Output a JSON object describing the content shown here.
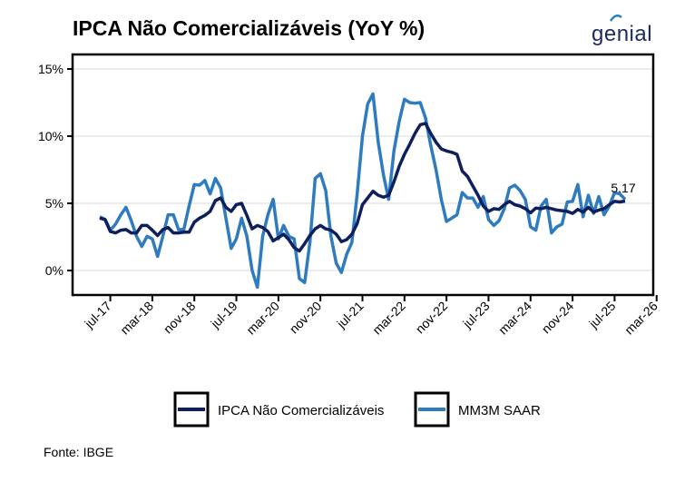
{
  "title": "IPCA Não Comercializáveis (YoY %)",
  "logo": "genial",
  "source": "Fonte: IBGE",
  "colors": {
    "ipca": "#0d1f5c",
    "mm3m": "#2f7bbf",
    "grid": "#e6e6e6"
  },
  "chart_data": {
    "type": "line",
    "title": "IPCA Não Comercializáveis (YoY %)",
    "xlabel": "",
    "ylabel": "",
    "ylim": [
      -1.8,
      16.1
    ],
    "yticks": [
      0,
      5,
      10,
      15
    ],
    "ytick_labels": [
      "0%",
      "5%",
      "10%",
      "15%"
    ],
    "xticks": [
      "2017-07",
      "2018-03",
      "2018-11",
      "2019-07",
      "2020-03",
      "2020-11",
      "2021-07",
      "2022-03",
      "2022-11",
      "2023-07",
      "2024-03",
      "2024-11",
      "2025-07",
      "2026-03"
    ],
    "xtick_labels": [
      "jul-17",
      "mar-18",
      "nov-18",
      "jul-19",
      "mar-20",
      "nov-20",
      "jul-21",
      "mar-22",
      "nov-22",
      "jul-23",
      "mar-24",
      "nov-24",
      "jul-25",
      "mar-26"
    ],
    "grid": "horizontal",
    "legend_position": "bottom",
    "x": [
      "2017-05",
      "2017-06",
      "2017-07",
      "2017-08",
      "2017-09",
      "2017-10",
      "2017-11",
      "2017-12",
      "2018-01",
      "2018-02",
      "2018-03",
      "2018-04",
      "2018-05",
      "2018-06",
      "2018-07",
      "2018-08",
      "2018-09",
      "2018-10",
      "2018-11",
      "2018-12",
      "2019-01",
      "2019-02",
      "2019-03",
      "2019-04",
      "2019-05",
      "2019-06",
      "2019-07",
      "2019-08",
      "2019-09",
      "2019-10",
      "2019-11",
      "2019-12",
      "2020-01",
      "2020-02",
      "2020-03",
      "2020-04",
      "2020-05",
      "2020-06",
      "2020-07",
      "2020-08",
      "2020-09",
      "2020-10",
      "2020-11",
      "2020-12",
      "2021-01",
      "2021-02",
      "2021-03",
      "2021-04",
      "2021-05",
      "2021-06",
      "2021-07",
      "2021-08",
      "2021-09",
      "2021-10",
      "2021-11",
      "2021-12",
      "2022-01",
      "2022-02",
      "2022-03",
      "2022-04",
      "2022-05",
      "2022-06",
      "2022-07",
      "2022-08",
      "2022-09",
      "2022-10",
      "2022-11",
      "2022-12",
      "2023-01",
      "2023-02",
      "2023-03",
      "2023-04",
      "2023-05",
      "2023-06",
      "2023-07",
      "2023-08",
      "2023-09",
      "2023-10",
      "2023-11",
      "2023-12",
      "2024-01",
      "2024-02",
      "2024-03",
      "2024-04",
      "2024-05",
      "2024-06",
      "2024-07",
      "2024-08",
      "2024-09",
      "2024-10",
      "2024-11",
      "2024-12",
      "2025-01",
      "2025-02",
      "2025-03",
      "2025-04",
      "2025-05",
      "2025-06",
      "2025-07",
      "2025-08",
      "2025-09"
    ],
    "series": [
      {
        "name": "IPCA Não Comercializáveis",
        "color": "#0d1f5c",
        "values": [
          3.9,
          3.8,
          2.9,
          2.8,
          3.0,
          3.05,
          2.8,
          2.8,
          3.35,
          3.35,
          3.0,
          2.6,
          3.05,
          3.2,
          2.8,
          2.8,
          2.85,
          2.85,
          3.6,
          3.9,
          4.1,
          4.4,
          5.2,
          5.4,
          4.7,
          4.4,
          4.9,
          5.0,
          4.1,
          3.1,
          3.35,
          3.2,
          2.9,
          2.2,
          2.45,
          2.7,
          2.3,
          1.7,
          1.45,
          2.0,
          2.6,
          3.1,
          3.35,
          3.1,
          3.0,
          2.7,
          2.15,
          2.3,
          2.7,
          3.5,
          4.9,
          5.4,
          5.9,
          5.6,
          5.45,
          5.6,
          6.6,
          7.75,
          8.65,
          9.4,
          10.2,
          10.85,
          10.95,
          10.2,
          9.55,
          9.05,
          8.9,
          8.8,
          8.65,
          7.4,
          7.0,
          6.3,
          5.6,
          4.8,
          4.4,
          4.6,
          4.55,
          4.9,
          5.15,
          4.9,
          4.8,
          4.6,
          4.3,
          4.65,
          4.6,
          4.7,
          4.6,
          4.5,
          4.45,
          4.4,
          4.25,
          4.55,
          4.35,
          4.7,
          4.35,
          4.5,
          4.6,
          4.9,
          5.15,
          5.1,
          5.17
        ]
      },
      {
        "name": "MM3M SAAR",
        "color": "#2f7bbf",
        "values": [
          4.0,
          3.8,
          3.0,
          3.45,
          4.15,
          4.7,
          3.7,
          2.55,
          1.8,
          2.55,
          2.35,
          1.05,
          2.55,
          4.15,
          4.15,
          3.05,
          3.05,
          4.8,
          6.4,
          6.35,
          6.7,
          5.7,
          6.85,
          6.15,
          3.9,
          1.65,
          2.35,
          3.9,
          2.55,
          0,
          -1.25,
          2.55,
          4.15,
          5.3,
          2.35,
          3.35,
          2.55,
          2.35,
          -0.6,
          -0.9,
          2.1,
          6.85,
          7.2,
          5.95,
          2.55,
          0.55,
          -0.15,
          1.2,
          2.1,
          5.7,
          10.0,
          12.4,
          13.15,
          9.55,
          7.1,
          5.3,
          8.9,
          11.1,
          12.75,
          12.5,
          12.45,
          12.5,
          11.35,
          9.3,
          7.5,
          5.3,
          3.65,
          3.9,
          4.15,
          5.8,
          5.4,
          5.4,
          4.7,
          5.5,
          3.8,
          3.35,
          3.7,
          4.6,
          6.15,
          6.35,
          5.95,
          5.3,
          3.25,
          3.0,
          4.8,
          5.3,
          2.8,
          3.25,
          3.45,
          5.1,
          5.15,
          6.4,
          4.0,
          5.6,
          4.25,
          5.5,
          4.15,
          4.8,
          5.8,
          5.7,
          5.3
        ]
      }
    ],
    "annotations": [
      {
        "text": "5.17",
        "x": "2025-09",
        "series": "IPCA Não Comercializáveis"
      }
    ]
  }
}
